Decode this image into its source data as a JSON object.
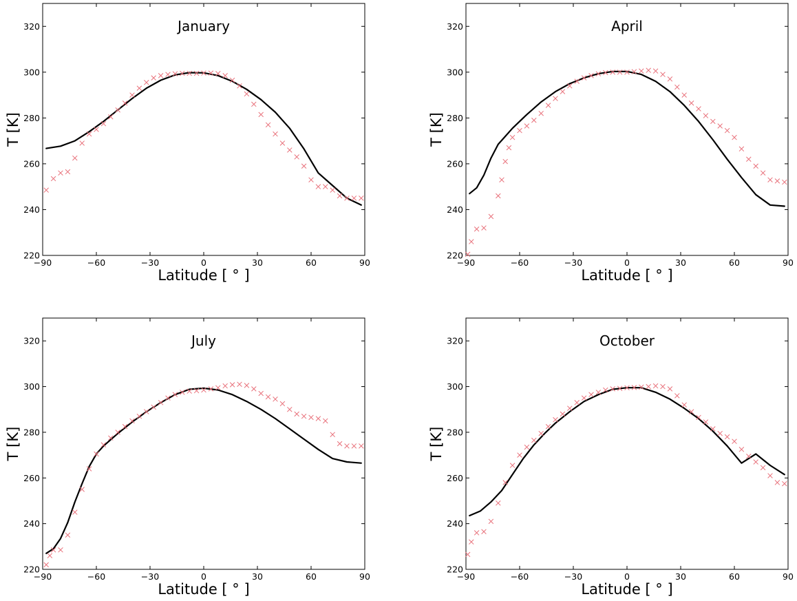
{
  "chart_data": [
    {
      "type": "line",
      "title": "January",
      "xlabel": "Latitude [$^\\circ$]",
      "xlabel_display": "Latitude [ ° ]",
      "ylabel": "T [K]",
      "xlim": [
        -90,
        90
      ],
      "ylim": [
        220,
        330
      ],
      "xticks": [
        "−90",
        "−60",
        "−30",
        "0",
        "30",
        "60",
        "90"
      ],
      "yticks": [
        "220",
        "240",
        "260",
        "280",
        "300",
        "320"
      ],
      "series": [
        {
          "style": "line",
          "color": "#000000",
          "x": [
            -88,
            -80,
            -72,
            -64,
            -56,
            -48,
            -40,
            -32,
            -24,
            -16,
            -8,
            0,
            8,
            16,
            24,
            32,
            40,
            48,
            56,
            64,
            72,
            80,
            88
          ],
          "y": [
            266.7,
            267.7,
            270.0,
            274.0,
            278.5,
            283.5,
            288.5,
            293.0,
            296.5,
            298.8,
            299.8,
            299.7,
            298.5,
            296.0,
            292.5,
            288.0,
            282.5,
            275.5,
            266.5,
            256.0,
            250.5,
            245.0,
            242.0
          ]
        },
        {
          "style": "markers",
          "marker": "x",
          "color": "#e8707a",
          "x": [
            -88,
            -84,
            -80,
            -76,
            -72,
            -68,
            -64,
            -60,
            -56,
            -52,
            -48,
            -44,
            -40,
            -36,
            -32,
            -28,
            -24,
            -20,
            -16,
            -12,
            -8,
            -4,
            0,
            4,
            8,
            12,
            16,
            20,
            24,
            28,
            32,
            36,
            40,
            44,
            48,
            52,
            56,
            60,
            64,
            68,
            72,
            76,
            80,
            84,
            88
          ],
          "y": [
            248.5,
            253.5,
            256.0,
            256.5,
            262.5,
            269.0,
            273.0,
            275.0,
            277.5,
            280.5,
            283.5,
            286.5,
            290.0,
            293.0,
            295.5,
            297.5,
            298.5,
            299.0,
            299.3,
            299.5,
            299.5,
            299.5,
            299.6,
            299.6,
            299.4,
            298.5,
            296.5,
            294.0,
            290.5,
            286.0,
            281.5,
            277.0,
            273.0,
            269.0,
            266.0,
            263.0,
            259.0,
            253.0,
            250.0,
            250.0,
            248.5,
            246.0,
            245.0,
            245.0,
            245.0
          ]
        }
      ]
    },
    {
      "type": "line",
      "title": "April",
      "xlabel": "Latitude [$^\\circ$]",
      "xlabel_display": "Latitude [ ° ]",
      "ylabel": "T [K]",
      "xlim": [
        -90,
        90
      ],
      "ylim": [
        220,
        330
      ],
      "xticks": [
        "−90",
        "−60",
        "−30",
        "0",
        "30",
        "60",
        "90"
      ],
      "yticks": [
        "220",
        "240",
        "260",
        "280",
        "300",
        "320"
      ],
      "series": [
        {
          "style": "line",
          "color": "#000000",
          "x": [
            -88,
            -84,
            -80,
            -76,
            -72,
            -68,
            -64,
            -56,
            -48,
            -40,
            -32,
            -24,
            -16,
            -8,
            0,
            8,
            16,
            24,
            32,
            40,
            48,
            56,
            64,
            72,
            80,
            88
          ],
          "y": [
            247.0,
            249.5,
            255.0,
            262.5,
            268.5,
            272.0,
            275.5,
            281.5,
            287.0,
            291.5,
            295.0,
            297.5,
            299.3,
            300.3,
            300.3,
            299.0,
            296.0,
            291.5,
            285.5,
            278.5,
            270.5,
            262.0,
            254.0,
            246.5,
            242.0,
            241.5
          ]
        },
        {
          "style": "markers",
          "marker": "x",
          "color": "#e8707a",
          "x": [
            -89,
            -87,
            -84,
            -80,
            -76,
            -72,
            -70,
            -68,
            -66,
            -64,
            -60,
            -56,
            -52,
            -48,
            -44,
            -40,
            -36,
            -32,
            -28,
            -24,
            -20,
            -16,
            -12,
            -8,
            -4,
            0,
            4,
            8,
            12,
            16,
            20,
            24,
            28,
            32,
            36,
            40,
            44,
            48,
            52,
            56,
            60,
            64,
            68,
            72,
            76,
            80,
            84,
            88
          ],
          "y": [
            220.5,
            226.0,
            231.5,
            232.0,
            237.0,
            246.0,
            253.0,
            261.0,
            267.0,
            271.5,
            274.5,
            276.5,
            279.0,
            282.0,
            285.5,
            288.5,
            291.5,
            294.0,
            296.0,
            297.5,
            298.5,
            299.3,
            299.8,
            300.0,
            300.0,
            300.0,
            300.2,
            300.5,
            300.8,
            300.5,
            299.0,
            297.0,
            293.5,
            290.0,
            286.5,
            284.0,
            281.0,
            278.5,
            276.5,
            274.5,
            271.5,
            266.5,
            262.0,
            259.0,
            256.0,
            253.0,
            252.5,
            252.0
          ]
        }
      ]
    },
    {
      "type": "line",
      "title": "July",
      "xlabel": "Latitude [$^\\circ$]",
      "xlabel_display": "Latitude [ ° ]",
      "ylabel": "T [K]",
      "xlim": [
        -90,
        90
      ],
      "ylim": [
        220,
        330
      ],
      "xticks": [
        "−90",
        "−60",
        "−30",
        "0",
        "30",
        "60",
        "90"
      ],
      "yticks": [
        "220",
        "240",
        "260",
        "280",
        "300",
        "320"
      ],
      "series": [
        {
          "style": "line",
          "color": "#000000",
          "x": [
            -88,
            -84,
            -80,
            -76,
            -72,
            -68,
            -64,
            -60,
            -56,
            -48,
            -40,
            -32,
            -24,
            -16,
            -8,
            0,
            8,
            16,
            24,
            32,
            40,
            48,
            56,
            64,
            72,
            80,
            88
          ],
          "y": [
            227.0,
            229.0,
            233.5,
            240.5,
            249.5,
            257.5,
            265.0,
            270.5,
            274.0,
            279.5,
            284.5,
            289.0,
            293.0,
            296.5,
            298.8,
            299.3,
            298.5,
            296.5,
            293.5,
            290.0,
            286.0,
            281.5,
            277.0,
            272.5,
            268.5,
            267.0,
            266.5
          ]
        },
        {
          "style": "markers",
          "marker": "x",
          "color": "#e8707a",
          "x": [
            -88,
            -86,
            -84,
            -80,
            -76,
            -72,
            -68,
            -64,
            -60,
            -56,
            -52,
            -48,
            -44,
            -40,
            -36,
            -32,
            -28,
            -24,
            -20,
            -16,
            -12,
            -8,
            -4,
            0,
            4,
            8,
            12,
            16,
            20,
            24,
            28,
            32,
            36,
            40,
            44,
            48,
            52,
            56,
            60,
            64,
            68,
            72,
            76,
            80,
            84,
            88
          ],
          "y": [
            222.0,
            226.0,
            228.5,
            228.5,
            235.0,
            245.0,
            255.0,
            264.0,
            270.5,
            274.5,
            277.5,
            280.0,
            282.5,
            285.0,
            287.0,
            289.0,
            291.0,
            293.0,
            295.0,
            296.5,
            297.5,
            298.0,
            298.2,
            298.5,
            299.0,
            299.5,
            300.3,
            300.8,
            301.0,
            300.5,
            299.0,
            297.0,
            295.5,
            294.5,
            292.5,
            290.0,
            288.0,
            287.0,
            286.5,
            286.0,
            285.0,
            279.0,
            275.0,
            274.0,
            274.0,
            274.0
          ]
        }
      ]
    },
    {
      "type": "line",
      "title": "October",
      "xlabel": "Latitude [$^\\circ$]",
      "xlabel_display": "Latitude [ ° ]",
      "ylabel": "T [K]",
      "xlim": [
        -90,
        90
      ],
      "ylim": [
        220,
        330
      ],
      "xticks": [
        "−90",
        "−60",
        "−30",
        "0",
        "30",
        "60",
        "90"
      ],
      "yticks": [
        "220",
        "240",
        "260",
        "280",
        "300",
        "320"
      ],
      "series": [
        {
          "style": "line",
          "color": "#000000",
          "x": [
            -88,
            -82,
            -76,
            -70,
            -64,
            -58,
            -52,
            -46,
            -40,
            -32,
            -24,
            -16,
            -8,
            0,
            8,
            16,
            24,
            32,
            40,
            48,
            56,
            64,
            72,
            80,
            88
          ],
          "y": [
            243.5,
            245.5,
            249.5,
            254.5,
            261.5,
            268.5,
            274.5,
            279.5,
            284.0,
            289.0,
            293.5,
            296.5,
            298.8,
            299.5,
            299.5,
            297.5,
            294.5,
            290.5,
            286.0,
            280.5,
            274.0,
            266.5,
            270.5,
            265.5,
            261.5
          ]
        },
        {
          "style": "markers",
          "marker": "x",
          "color": "#e8707a",
          "x": [
            -89,
            -87,
            -84,
            -80,
            -76,
            -72,
            -68,
            -64,
            -60,
            -56,
            -52,
            -48,
            -44,
            -40,
            -36,
            -32,
            -28,
            -24,
            -20,
            -16,
            -12,
            -8,
            -4,
            0,
            4,
            8,
            12,
            16,
            20,
            24,
            28,
            32,
            36,
            40,
            44,
            48,
            52,
            56,
            60,
            64,
            68,
            72,
            76,
            80,
            84,
            88
          ],
          "y": [
            226.5,
            232.0,
            236.0,
            236.5,
            241.0,
            249.0,
            258.0,
            265.5,
            270.0,
            273.5,
            276.5,
            279.5,
            282.5,
            285.5,
            288.0,
            290.5,
            293.0,
            295.0,
            296.5,
            297.5,
            298.5,
            299.0,
            299.2,
            299.5,
            299.6,
            299.8,
            300.0,
            300.3,
            300.0,
            299.0,
            296.0,
            292.0,
            289.0,
            286.5,
            284.5,
            281.5,
            279.5,
            278.0,
            276.0,
            272.5,
            269.5,
            267.0,
            264.5,
            261.0,
            258.0,
            257.5
          ]
        }
      ]
    }
  ]
}
